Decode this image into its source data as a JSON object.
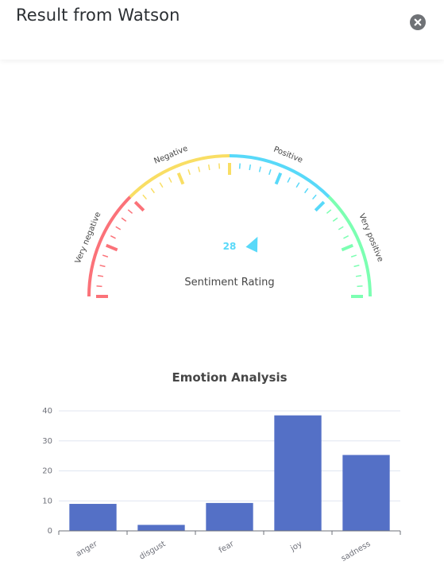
{
  "header": {
    "title": "Result from Watson",
    "close_icon": "close-icon"
  },
  "gauge": {
    "value": "28",
    "title": "Sentiment Rating",
    "min": -100,
    "max": 100,
    "pointer_value": 28,
    "bands": [
      {
        "label": "Very negative",
        "color": "#FB7279",
        "from": -100,
        "to": -50
      },
      {
        "label": "Negative",
        "color": "#F9DE64",
        "from": -50,
        "to": 0
      },
      {
        "label": "Positive",
        "color": "#58D9F9",
        "from": 0,
        "to": 50
      },
      {
        "label": "Very positive",
        "color": "#7CFFB2",
        "from": 50,
        "to": 100
      }
    ],
    "value_color": "#58D9F9"
  },
  "chart_data": {
    "type": "bar",
    "title": "Emotion Analysis",
    "categories": [
      "anger",
      "disgust",
      "fear",
      "joy",
      "sadness"
    ],
    "values": [
      9,
      2,
      9.3,
      38.5,
      25.3
    ],
    "ylim": [
      0,
      40
    ],
    "yticks": [
      "0",
      "10",
      "20",
      "30",
      "40"
    ],
    "color": "#5470C6",
    "grid": true
  }
}
